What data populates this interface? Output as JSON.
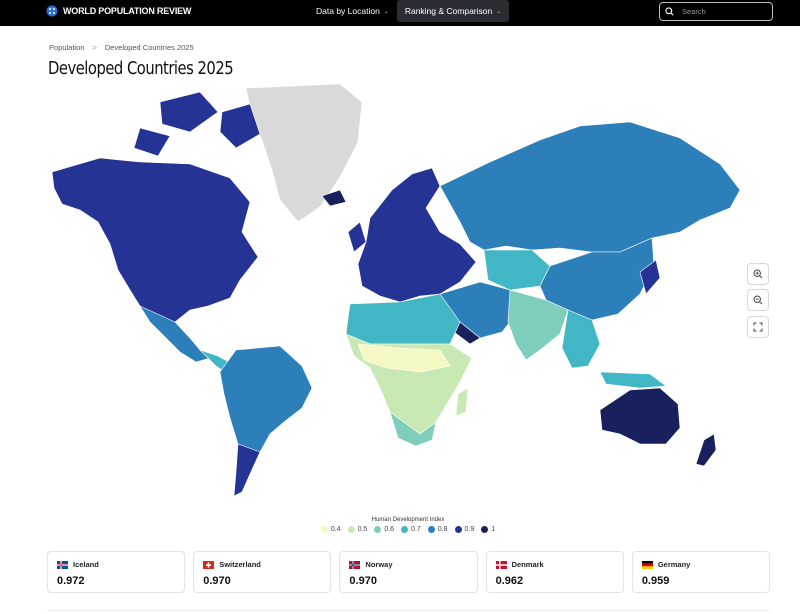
{
  "header": {
    "brand": "WORLD POPULATION REVIEW",
    "nav": [
      {
        "label": "Data by Location",
        "active": false
      },
      {
        "label": "Ranking & Comparison",
        "active": true
      }
    ],
    "search_placeholder": "Search"
  },
  "breadcrumb": {
    "root": "Population",
    "separator": ">",
    "current": "Developed Countries 2025"
  },
  "page_title": "Developed Countries 2025",
  "map": {
    "metric": "Human Development Index",
    "palette": {
      "0.4": "#f5f8c4",
      "0.5": "#c9e9b4",
      "0.6": "#7fcdbb",
      "0.7": "#41b6c4",
      "0.8": "#2c7fb8",
      "0.9": "#253494",
      "1": "#18205e",
      "no_data": "#d9d9d9"
    }
  },
  "legend": {
    "title": "Human Development Index",
    "items": [
      {
        "label": "0.4",
        "color": "#f5f8c4"
      },
      {
        "label": "0.5",
        "color": "#c9e9b4"
      },
      {
        "label": "0.6",
        "color": "#7fcdbb"
      },
      {
        "label": "0.7",
        "color": "#41b6c4"
      },
      {
        "label": "0.8",
        "color": "#2c7fb8"
      },
      {
        "label": "0.9",
        "color": "#253494"
      },
      {
        "label": "1",
        "color": "#18205e"
      }
    ]
  },
  "zoom_controls": [
    "zoom-in-icon",
    "zoom-out-icon",
    "fullscreen-icon"
  ],
  "top_countries": [
    {
      "name": "Iceland",
      "value": "0.972"
    },
    {
      "name": "Switzerland",
      "value": "0.970"
    },
    {
      "name": "Norway",
      "value": "0.970"
    },
    {
      "name": "Denmark",
      "value": "0.962"
    },
    {
      "name": "Germany",
      "value": "0.959"
    }
  ]
}
